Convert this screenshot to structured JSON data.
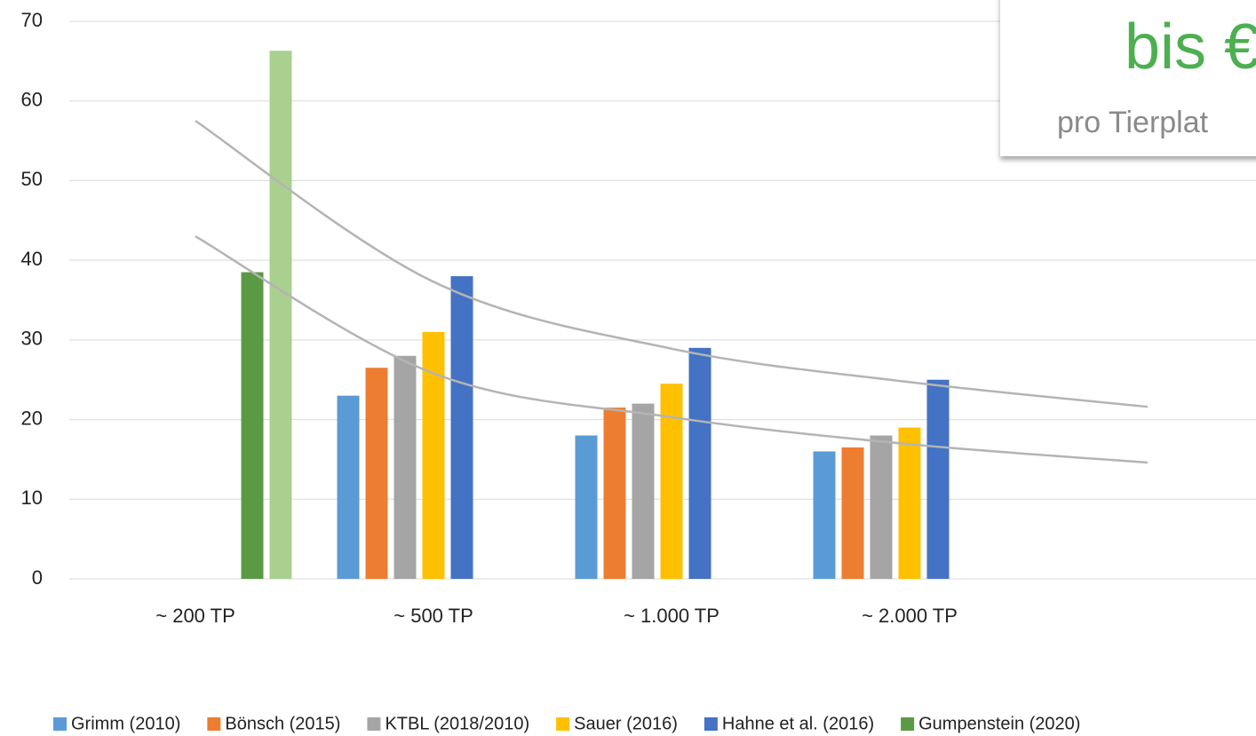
{
  "chart_data": {
    "type": "bar",
    "categories": [
      "~ 200 TP",
      "~ 500 TP",
      "~ 1.000 TP",
      "~ 2.000 TP",
      null
    ],
    "series": [
      {
        "name": "Grimm (2010)",
        "color": "#5b9bd5",
        "values": [
          null,
          23,
          18,
          16,
          null
        ]
      },
      {
        "name": "Bönsch (2015)",
        "color": "#ed7d31",
        "values": [
          null,
          26.5,
          21.5,
          16.5,
          null
        ]
      },
      {
        "name": "KTBL (2018/2010)",
        "color": "#a5a5a5",
        "values": [
          null,
          28,
          22,
          18,
          null
        ]
      },
      {
        "name": "Sauer (2016)",
        "color": "#ffc000",
        "values": [
          null,
          31,
          24.5,
          19,
          null
        ]
      },
      {
        "name": "Hahne et al. (2016)",
        "color": "#4472c4",
        "values": [
          null,
          38,
          29,
          25,
          null
        ]
      },
      {
        "name": "Gumpenstein (2020)",
        "color": "#5b9a45",
        "values": [
          38.5,
          null,
          null,
          null,
          null
        ]
      },
      {
        "color": "#a9d08e",
        "values": [
          66.3,
          null,
          null,
          null,
          null
        ]
      }
    ],
    "trendlines": [
      {
        "color": "#b4b4b4",
        "values": [
          57.5,
          37.3,
          28.9,
          24.7,
          21.6
        ]
      },
      {
        "color": "#b4b4b4",
        "values": [
          43,
          25.8,
          20.3,
          16.9,
          14.6
        ]
      }
    ],
    "ylim": [
      0,
      70
    ],
    "yticks": [
      0,
      10,
      20,
      30,
      40,
      50,
      60,
      70
    ],
    "grid": true,
    "legend": "bottom",
    "callout": {
      "title": "bis €",
      "subtitle": "pro Tierplat"
    }
  }
}
